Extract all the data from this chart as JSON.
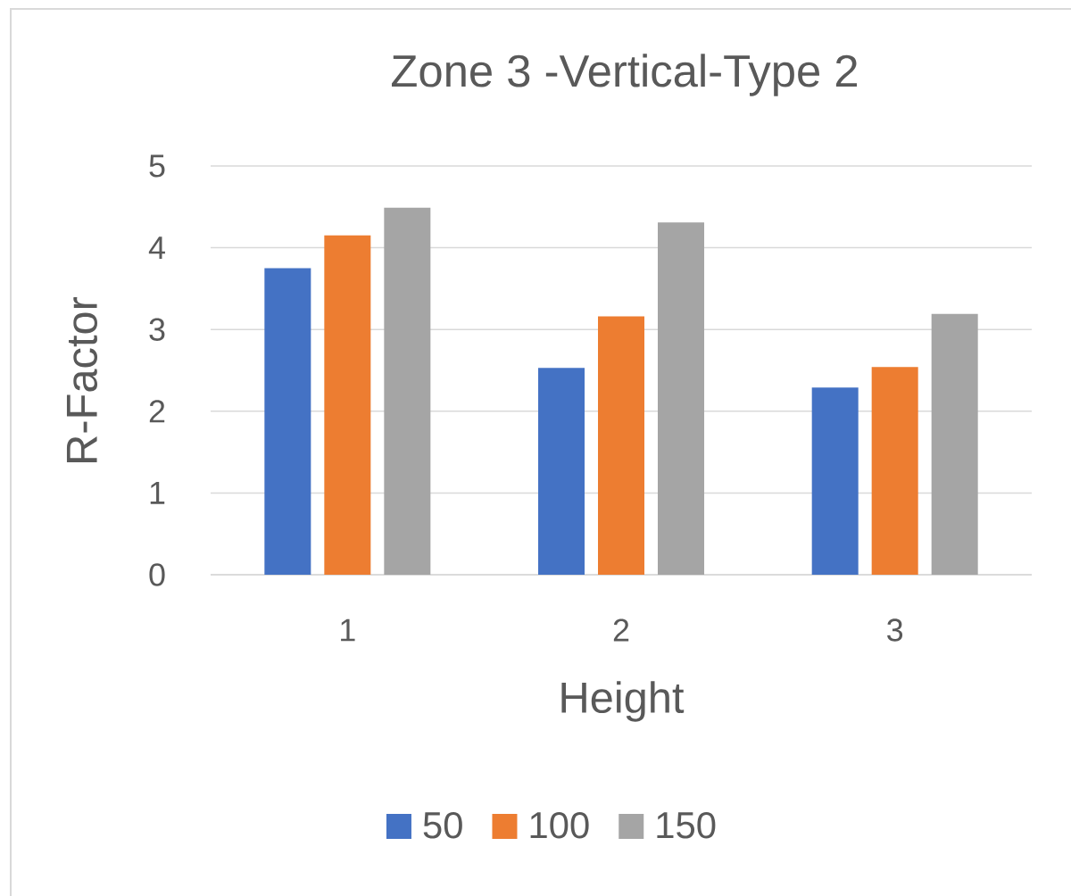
{
  "chart_data": {
    "type": "bar",
    "title": "Zone 3 -Vertical-Type 2",
    "xlabel": "Height",
    "ylabel": "R-Factor",
    "categories": [
      "1",
      "2",
      "3"
    ],
    "series": [
      {
        "name": "50",
        "color": "#4472c4",
        "values": [
          3.75,
          2.53,
          2.29
        ]
      },
      {
        "name": "100",
        "color": "#ed7d31",
        "values": [
          4.15,
          3.16,
          2.54
        ]
      },
      {
        "name": "150",
        "color": "#a5a5a5",
        "values": [
          4.49,
          4.31,
          3.19
        ]
      }
    ],
    "ylim": [
      0,
      5
    ],
    "yticks": [
      0,
      1,
      2,
      3,
      4,
      5
    ],
    "grid": "y",
    "legend": "bottom"
  }
}
